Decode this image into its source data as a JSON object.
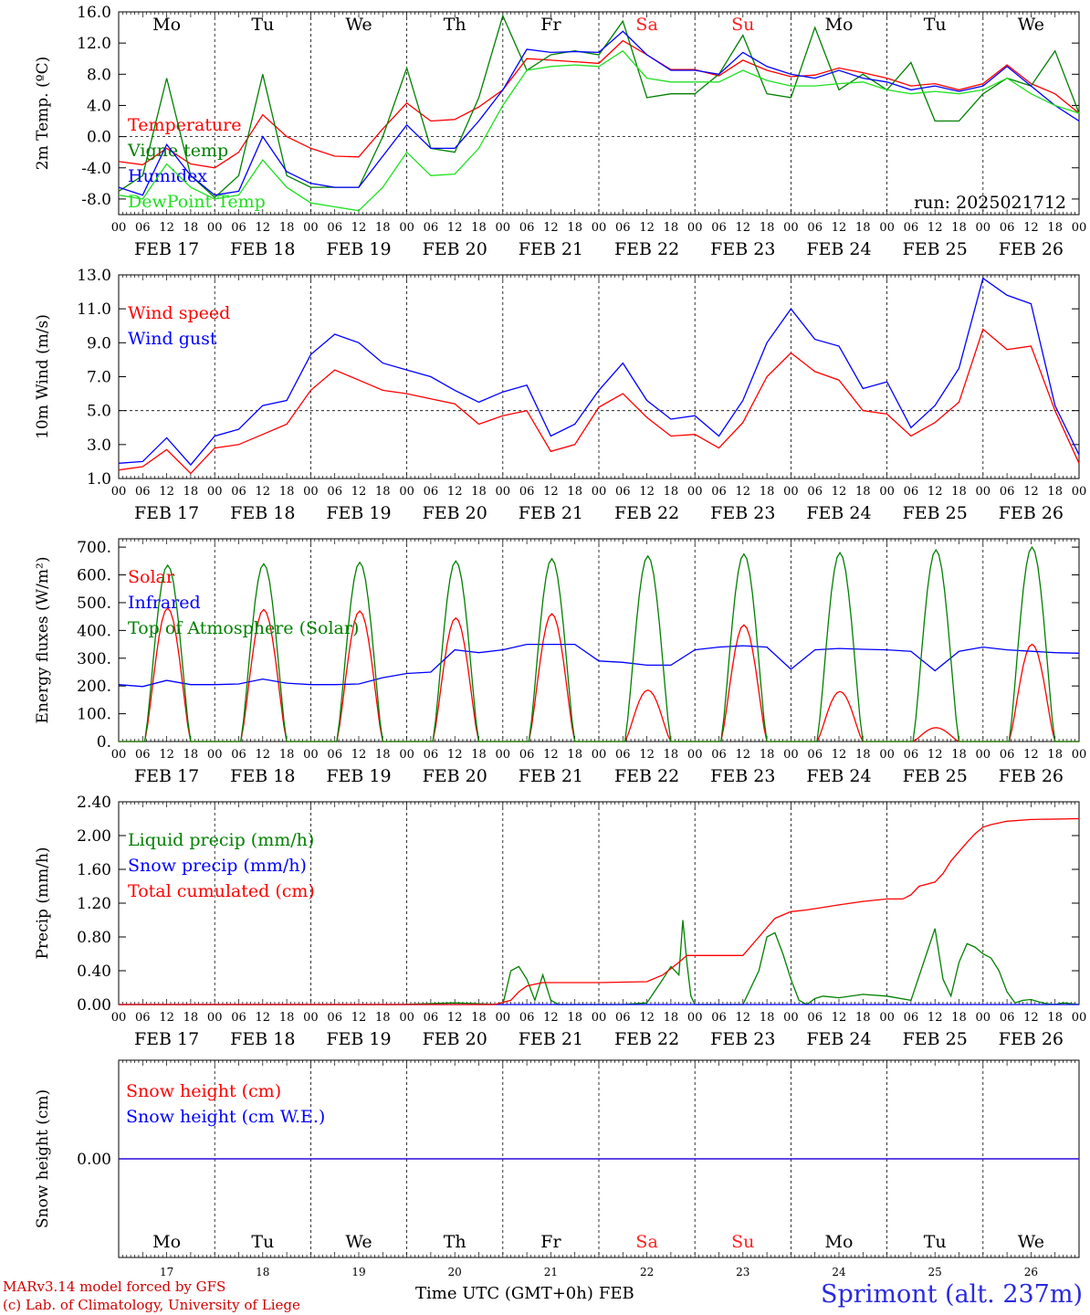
{
  "days": [
    "17",
    "18",
    "19",
    "20",
    "21",
    "22",
    "23",
    "24",
    "25",
    "26"
  ],
  "month": "FEB",
  "hour_ticks": [
    "00",
    "06",
    "12",
    "18"
  ],
  "weekdays": [
    "Mo",
    "Tu",
    "We",
    "Th",
    "Fr",
    "Sa",
    "Su",
    "Mo",
    "Tu",
    "We"
  ],
  "weekend_color": "#ff2020",
  "run_label": "run: 2025021712",
  "time_axis_label": "Time UTC (GMT+0h)",
  "footer": {
    "line1": "MARv3.14 model forced by GFS",
    "line2": "(c) Lab. of Climatology, University of Liege",
    "station": "Sprimont (alt. 237m)"
  },
  "chart_data": [
    {
      "type": "line",
      "ylabel": "2m Temp. (ºC)",
      "ylim": [
        -10,
        16
      ],
      "yticks": [
        "16.0",
        "12.0",
        "8.0",
        "4.0",
        "0.0",
        "-4.0",
        "-8.0"
      ],
      "x_unit": "hours since FEB 17 00 UTC",
      "series": [
        {
          "name": "Temperature",
          "color": "#ff0000",
          "x": [
            0,
            6,
            12,
            18,
            24,
            30,
            36,
            42,
            48,
            54,
            60,
            66,
            72,
            78,
            84,
            90,
            96,
            102,
            108,
            114,
            120,
            126,
            132,
            138,
            144,
            150,
            156,
            162,
            168,
            174,
            180,
            186,
            192,
            198,
            204,
            210,
            216,
            222,
            228,
            234,
            240
          ],
          "y": [
            -3.2,
            -3.6,
            -1.5,
            -3.5,
            -4.0,
            -2.0,
            2.8,
            0.0,
            -1.5,
            -2.5,
            -2.6,
            1.0,
            4.3,
            2.0,
            2.2,
            3.8,
            6.0,
            10.0,
            9.8,
            9.6,
            9.4,
            12.3,
            10.5,
            8.6,
            8.6,
            7.8,
            9.8,
            8.5,
            7.7,
            7.9,
            8.8,
            8.2,
            7.5,
            6.5,
            6.8,
            6.0,
            6.8,
            9.2,
            6.8,
            5.5,
            3.0
          ]
        },
        {
          "name": "Vigne temp",
          "color": "#008000",
          "x": [
            0,
            6,
            12,
            18,
            24,
            30,
            36,
            42,
            48,
            54,
            60,
            66,
            72,
            78,
            84,
            90,
            96,
            102,
            108,
            114,
            120,
            126,
            132,
            138,
            144,
            150,
            156,
            162,
            168,
            174,
            180,
            186,
            192,
            198,
            204,
            210,
            216,
            222,
            228,
            234,
            240
          ],
          "y": [
            -7.0,
            -5.0,
            7.5,
            -5.0,
            -7.8,
            -5.0,
            8.0,
            -5.0,
            -6.5,
            -6.5,
            -6.5,
            0.0,
            8.8,
            -1.5,
            -2.0,
            5.0,
            15.5,
            8.5,
            10.5,
            11.0,
            10.5,
            14.8,
            5.0,
            5.5,
            5.5,
            8.0,
            13.0,
            5.5,
            5.0,
            14.0,
            6.0,
            8.0,
            6.0,
            9.5,
            2.0,
            2.0,
            5.5,
            7.5,
            6.5,
            11.0,
            3.0
          ]
        },
        {
          "name": "Humidex",
          "color": "#0000ff",
          "x": [
            0,
            6,
            12,
            18,
            24,
            30,
            36,
            42,
            48,
            54,
            60,
            66,
            72,
            78,
            84,
            90,
            96,
            102,
            108,
            114,
            120,
            126,
            132,
            138,
            144,
            150,
            156,
            162,
            168,
            174,
            180,
            186,
            192,
            198,
            204,
            210,
            216,
            222,
            228,
            234,
            240
          ],
          "y": [
            -6.5,
            -7.5,
            -1.0,
            -5.0,
            -7.5,
            -7.0,
            0.0,
            -4.5,
            -6.0,
            -6.5,
            -6.5,
            -2.5,
            1.5,
            -1.5,
            -1.5,
            2.0,
            6.0,
            11.2,
            10.8,
            10.9,
            10.8,
            13.5,
            10.5,
            8.5,
            8.5,
            8.0,
            10.8,
            9.0,
            8.0,
            7.5,
            8.5,
            7.5,
            7.0,
            6.0,
            6.5,
            5.8,
            6.5,
            9.0,
            6.5,
            4.0,
            2.0
          ]
        },
        {
          "name": "DewPoint Temp",
          "color": "#20e020",
          "x": [
            0,
            6,
            12,
            18,
            24,
            30,
            36,
            42,
            48,
            54,
            60,
            66,
            72,
            78,
            84,
            90,
            96,
            102,
            108,
            114,
            120,
            126,
            132,
            138,
            144,
            150,
            156,
            162,
            168,
            174,
            180,
            186,
            192,
            198,
            204,
            210,
            216,
            222,
            228,
            234,
            240
          ],
          "y": [
            -7.5,
            -8.0,
            -3.5,
            -6.5,
            -8.0,
            -7.5,
            -3.0,
            -6.5,
            -8.5,
            -9.0,
            -9.5,
            -6.5,
            -2.0,
            -5.0,
            -4.8,
            -1.5,
            4.0,
            8.5,
            9.0,
            9.2,
            9.0,
            11.0,
            7.5,
            7.0,
            7.0,
            7.0,
            8.5,
            7.2,
            6.5,
            6.5,
            6.8,
            7.0,
            6.0,
            5.5,
            5.8,
            5.5,
            6.0,
            7.5,
            5.5,
            4.0,
            3.0
          ]
        }
      ]
    },
    {
      "type": "line",
      "ylabel": "10m Wind (m/s)",
      "ylim": [
        1.0,
        13.0
      ],
      "yticks": [
        "13.0",
        "11.0",
        "9.0",
        "7.0",
        "5.0",
        "3.0",
        "1.0"
      ],
      "x_unit": "hours since FEB 17 00 UTC",
      "series": [
        {
          "name": "Wind speed",
          "color": "#ff0000",
          "x": [
            0,
            6,
            12,
            18,
            24,
            30,
            36,
            42,
            48,
            54,
            60,
            66,
            72,
            78,
            84,
            90,
            96,
            102,
            108,
            114,
            120,
            126,
            132,
            138,
            144,
            150,
            156,
            162,
            168,
            174,
            180,
            186,
            192,
            198,
            204,
            210,
            216,
            222,
            228,
            234,
            240
          ],
          "y": [
            1.5,
            1.7,
            2.7,
            1.3,
            2.8,
            3.0,
            3.6,
            4.2,
            6.2,
            7.4,
            6.8,
            6.2,
            6.0,
            5.7,
            5.4,
            4.2,
            4.7,
            5.0,
            2.6,
            3.0,
            5.2,
            6.0,
            4.6,
            3.5,
            3.6,
            2.8,
            4.3,
            7.0,
            8.4,
            7.3,
            6.8,
            5.0,
            4.8,
            3.5,
            4.3,
            5.5,
            9.8,
            8.6,
            8.8,
            5.0,
            1.9
          ]
        },
        {
          "name": "Wind gust",
          "color": "#0000ff",
          "x": [
            0,
            6,
            12,
            18,
            24,
            30,
            36,
            42,
            48,
            54,
            60,
            66,
            72,
            78,
            84,
            90,
            96,
            102,
            108,
            114,
            120,
            126,
            132,
            138,
            144,
            150,
            156,
            162,
            168,
            174,
            180,
            186,
            192,
            198,
            204,
            210,
            216,
            222,
            228,
            234,
            240
          ],
          "y": [
            1.9,
            2.0,
            3.4,
            1.8,
            3.5,
            3.9,
            5.3,
            5.6,
            8.3,
            9.5,
            9.0,
            7.8,
            7.4,
            7.0,
            6.2,
            5.5,
            6.1,
            6.5,
            3.5,
            4.2,
            6.2,
            7.8,
            5.6,
            4.5,
            4.7,
            3.5,
            5.6,
            9.0,
            11.0,
            9.2,
            8.8,
            6.3,
            6.7,
            4.0,
            5.3,
            7.5,
            12.8,
            11.8,
            11.3,
            5.3,
            2.4
          ]
        }
      ]
    },
    {
      "type": "line",
      "ylabel": "Energy fluxes (W/m²)",
      "ylim": [
        0,
        730
      ],
      "yticks": [
        "700.",
        "600.",
        "500.",
        "400.",
        "300.",
        "200.",
        "100.",
        "0."
      ],
      "x_unit": "hours since FEB 17 00 UTC",
      "daytime": {
        "start_hour": 7.5,
        "end_hour": 17.0
      },
      "series": [
        {
          "name": "Solar",
          "color": "#ff0000",
          "daily_peak": [
            480,
            475,
            470,
            445,
            460,
            185,
            420,
            180,
            50,
            350
          ]
        },
        {
          "name": "Infrared",
          "color": "#0000ff",
          "x": [
            0,
            6,
            12,
            18,
            24,
            30,
            36,
            42,
            48,
            54,
            60,
            66,
            72,
            78,
            84,
            90,
            96,
            102,
            108,
            114,
            120,
            126,
            132,
            138,
            144,
            150,
            156,
            162,
            168,
            174,
            180,
            186,
            192,
            198,
            204,
            210,
            216,
            222,
            228,
            234,
            240
          ],
          "y": [
            205,
            198,
            220,
            205,
            205,
            207,
            225,
            210,
            205,
            205,
            207,
            230,
            245,
            250,
            330,
            320,
            330,
            350,
            350,
            350,
            290,
            285,
            275,
            275,
            330,
            340,
            345,
            340,
            260,
            330,
            335,
            332,
            330,
            325,
            255,
            325,
            340,
            330,
            325,
            320,
            318
          ]
        },
        {
          "name": "Top of Atmosphere (Solar)",
          "color": "#008000",
          "daily_peak": [
            635,
            640,
            645,
            650,
            658,
            668,
            675,
            680,
            690,
            700
          ]
        }
      ]
    },
    {
      "type": "line",
      "ylabel": "Precip (mm/h)",
      "ylim": [
        0,
        2.4
      ],
      "yticks": [
        "2.40",
        "2.00",
        "1.60",
        "1.20",
        "0.80",
        "0.40",
        "0.00"
      ],
      "x_unit": "hours since FEB 17 00 UTC",
      "series": [
        {
          "name": "Liquid precip (mm/h)",
          "color": "#008000",
          "x": [
            0,
            70,
            84,
            90,
            96,
            98,
            100,
            102,
            104,
            106,
            108,
            110,
            112,
            114,
            116,
            120,
            126,
            132,
            136,
            138,
            140,
            141,
            142,
            143,
            144,
            146,
            156,
            160,
            162,
            164,
            166,
            168,
            170,
            172,
            174,
            176,
            180,
            186,
            192,
            198,
            204,
            206,
            208,
            210,
            212,
            214,
            216,
            218,
            220,
            222,
            224,
            226,
            228,
            230,
            232,
            234,
            236,
            240
          ],
          "y": [
            0,
            0,
            0.02,
            0.01,
            0,
            0.4,
            0.45,
            0.3,
            0.05,
            0.35,
            0.05,
            0,
            0,
            0,
            0,
            0,
            0,
            0.02,
            0.3,
            0.45,
            0.35,
            1.0,
            0.5,
            0.1,
            0,
            0,
            0,
            0.4,
            0.8,
            0.85,
            0.6,
            0.3,
            0.05,
            0,
            0.07,
            0.1,
            0.08,
            0.12,
            0.1,
            0.05,
            0.9,
            0.3,
            0.1,
            0.5,
            0.72,
            0.68,
            0.6,
            0.55,
            0.4,
            0.15,
            0.02,
            0.05,
            0.06,
            0.03,
            0.01,
            0,
            0.02,
            0
          ]
        },
        {
          "name": "Snow precip (mm/h)",
          "color": "#0000ff",
          "x": [
            0,
            240
          ],
          "y": [
            0,
            0
          ]
        },
        {
          "name": "Total cumulated (cm)",
          "color": "#ff0000",
          "x": [
            0,
            94,
            98,
            100,
            102,
            104,
            106,
            108,
            120,
            132,
            136,
            140,
            142,
            144,
            156,
            160,
            164,
            168,
            172,
            180,
            186,
            192,
            196,
            198,
            200,
            204,
            206,
            208,
            212,
            214,
            216,
            218,
            220,
            222,
            228,
            240
          ],
          "y": [
            0,
            0,
            0.05,
            0.15,
            0.22,
            0.24,
            0.26,
            0.26,
            0.26,
            0.27,
            0.35,
            0.5,
            0.58,
            0.58,
            0.58,
            0.8,
            1.02,
            1.1,
            1.12,
            1.18,
            1.22,
            1.25,
            1.25,
            1.3,
            1.4,
            1.45,
            1.55,
            1.7,
            1.92,
            2.02,
            2.1,
            2.13,
            2.15,
            2.17,
            2.19,
            2.2
          ]
        }
      ]
    },
    {
      "type": "line",
      "ylabel": "Snow height (cm)",
      "ylim": [
        -1,
        1
      ],
      "yticks": [
        "0.00"
      ],
      "x_unit": "hours since FEB 17 00 UTC",
      "series": [
        {
          "name": "Snow height (cm)",
          "color": "#ff0000",
          "x": [
            0,
            240
          ],
          "y": [
            0,
            0
          ]
        },
        {
          "name": "Snow height (cm W.E.)",
          "color": "#0000ff",
          "x": [
            0,
            240
          ],
          "y": [
            0,
            0
          ]
        }
      ]
    }
  ]
}
